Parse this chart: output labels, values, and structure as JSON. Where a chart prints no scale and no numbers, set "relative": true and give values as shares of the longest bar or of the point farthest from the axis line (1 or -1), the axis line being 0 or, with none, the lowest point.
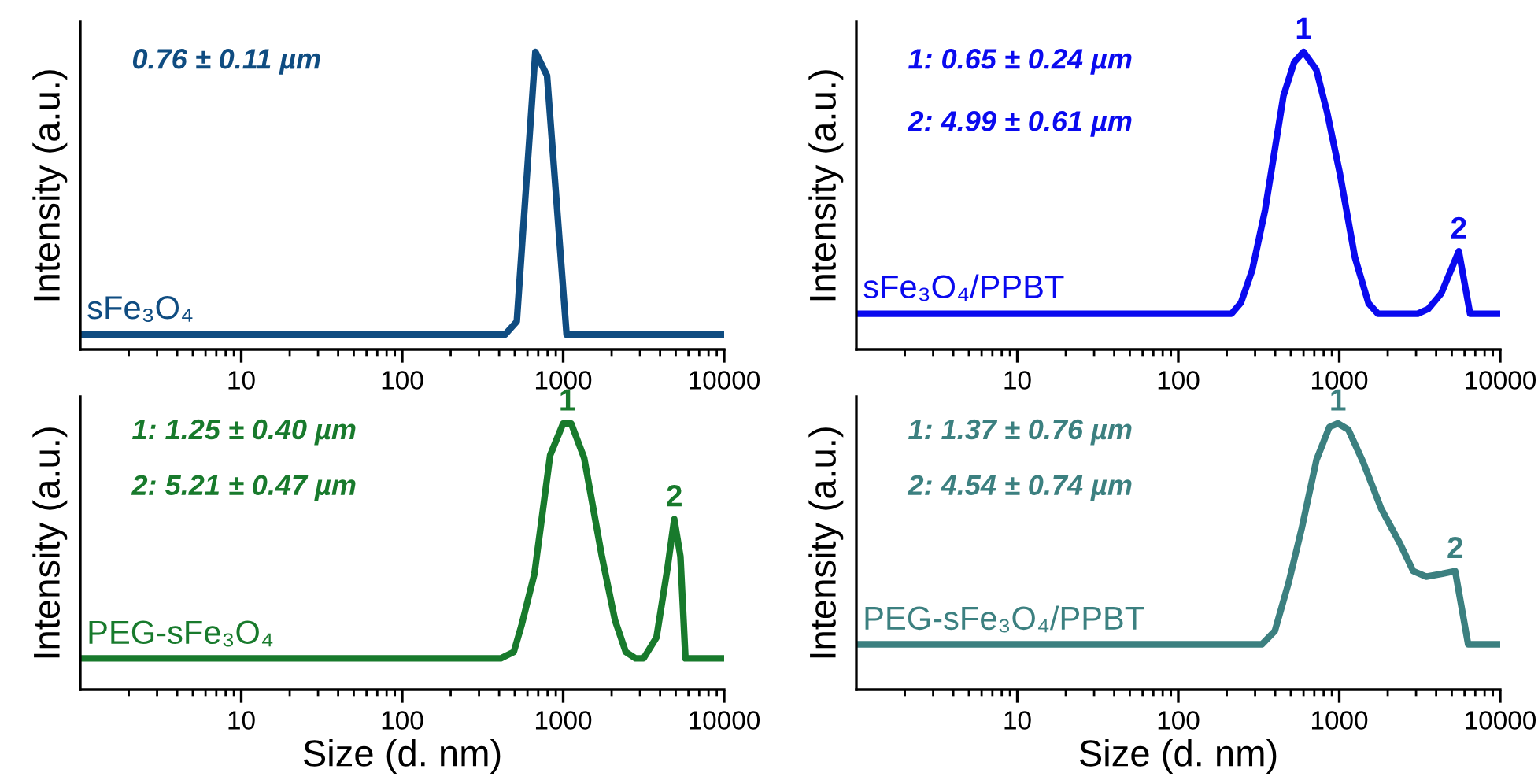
{
  "chart_data": [
    {
      "type": "line",
      "relative": true,
      "ylabel": "Intensity (a.u.)",
      "xlim": [
        1,
        10000
      ],
      "xticks": [
        10,
        100,
        1000,
        10000
      ],
      "log": "x",
      "tick_labels": "x",
      "grid": false,
      "legend": false,
      "marker": "none",
      "line_style": "solid",
      "annotations": [
        "0.76 ± 0.11 µm"
      ],
      "series": [
        {
          "name": "sFe₃O₄",
          "color": "#0f4c81",
          "x": [
            1,
            435,
            515,
            672,
            794,
            1050,
            10000
          ],
          "values": [
            0.05,
            0.05,
            0.094,
            1.0,
            0.92,
            0.05,
            0.05
          ]
        }
      ]
    },
    {
      "type": "line",
      "relative": true,
      "ylabel": "Intensity (a.u.)",
      "xlim": [
        1,
        10000
      ],
      "xticks": [
        10,
        100,
        1000,
        10000
      ],
      "log": "x",
      "tick_labels": "x",
      "grid": false,
      "legend": false,
      "marker": "none",
      "line_style": "solid",
      "annotations": [
        "1: 0.65 ± 0.24 µm",
        "2: 4.99 ± 0.61 µm",
        {
          "text": "1",
          "x": 600,
          "y": 1.0
        },
        {
          "text": "2",
          "x": 5530,
          "y": 0.33
        }
      ],
      "series": [
        {
          "name": "sFe₃O₄/PPBT",
          "color": "#0a0aef",
          "x": [
            1,
            214,
            245,
            288,
            346,
            450,
            525,
            600,
            720,
            838,
            1010,
            1250,
            1520,
            1740,
            3070,
            3570,
            4300,
            5530,
            6500,
            10000
          ],
          "values": [
            0.12,
            0.12,
            0.157,
            0.267,
            0.468,
            0.852,
            0.965,
            1.0,
            0.94,
            0.8,
            0.59,
            0.31,
            0.155,
            0.12,
            0.12,
            0.136,
            0.188,
            0.33,
            0.12,
            0.12
          ]
        }
      ]
    },
    {
      "type": "line",
      "relative": true,
      "ylabel": "Intensity (a.u.)",
      "xlabel": "Size (d. nm)",
      "xlim": [
        1,
        10000
      ],
      "xticks": [
        10,
        100,
        1000,
        10000
      ],
      "log": "x",
      "tick_labels": "x",
      "grid": false,
      "legend": false,
      "marker": "none",
      "line_style": "solid",
      "annotations": [
        "1: 1.25 ± 0.40 µm",
        "2: 5.21 ± 0.47 µm",
        {
          "text": "1",
          "x": 1060,
          "y": 1.0
        },
        {
          "text": "2",
          "x": 4900,
          "y": 0.64
        }
      ],
      "series": [
        {
          "name": "PEG-sFe₃O₄",
          "color": "#187a2c",
          "x": [
            1,
            409,
            493,
            550,
            663,
            830,
            1000,
            1120,
            1350,
            1740,
            2100,
            2450,
            2820,
            3160,
            3800,
            4450,
            4900,
            5350,
            5750,
            10000
          ],
          "values": [
            0.117,
            0.117,
            0.141,
            0.239,
            0.435,
            0.88,
            1.0,
            1.0,
            0.87,
            0.5,
            0.26,
            0.141,
            0.117,
            0.117,
            0.196,
            0.457,
            0.64,
            0.5,
            0.117,
            0.117
          ]
        }
      ]
    },
    {
      "type": "line",
      "relative": true,
      "ylabel": "Intensity (a.u.)",
      "xlabel": "Size (d. nm)",
      "xlim": [
        1,
        10000
      ],
      "xticks": [
        10,
        100,
        1000,
        10000
      ],
      "log": "x",
      "tick_labels": "x",
      "grid": false,
      "legend": false,
      "marker": "none",
      "line_style": "solid",
      "annotations": [
        "1: 1.37 ± 0.76 µm",
        "2: 4.54 ± 0.74 µm",
        {
          "text": "1",
          "x": 980,
          "y": 1.0
        },
        {
          "text": "2",
          "x": 5250,
          "y": 0.445
        }
      ],
      "series": [
        {
          "name": "PEG-sFe₃O₄/PPBT",
          "color": "#3c8080",
          "x": [
            1,
            331,
            398,
            486,
            586,
            722,
            868,
            980,
            1140,
            1410,
            1820,
            2390,
            2880,
            3470,
            4370,
            5250,
            6320,
            10000
          ],
          "values": [
            0.17,
            0.17,
            0.22,
            0.404,
            0.608,
            0.863,
            0.986,
            1.0,
            0.976,
            0.853,
            0.68,
            0.547,
            0.445,
            0.424,
            0.435,
            0.445,
            0.17,
            0.17
          ]
        }
      ]
    }
  ]
}
